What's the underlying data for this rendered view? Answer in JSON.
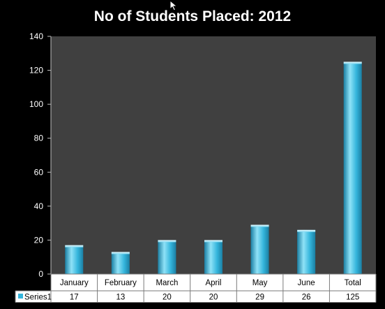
{
  "chart_data": {
    "type": "bar",
    "title": "No of Students Placed: 2012",
    "categories": [
      "January",
      "February",
      "March",
      "April",
      "May",
      "June",
      "Total"
    ],
    "series": [
      {
        "name": "Series1",
        "values": [
          17,
          13,
          20,
          20,
          29,
          26,
          125
        ]
      }
    ],
    "ylim": [
      0,
      140
    ],
    "yticks": [
      0,
      20,
      40,
      60,
      80,
      100,
      120,
      140
    ],
    "xlabel": "",
    "ylabel": "",
    "grid": false,
    "legend": "data-table",
    "data_table_values": [
      "17",
      "13",
      "20",
      "20",
      "29",
      "26",
      "125"
    ]
  },
  "colors": {
    "page_background": "#000000",
    "plot_background": "#404040",
    "bar": "#34b5dc",
    "bar_highlight": "#8fe2f7",
    "bar_shadow": "#1b7fa3",
    "table_background": "#ffffff",
    "table_border": "#7a7a7a"
  },
  "icons": {
    "cursor": "mouse-pointer-icon",
    "legend_key": "legend-key-icon"
  }
}
